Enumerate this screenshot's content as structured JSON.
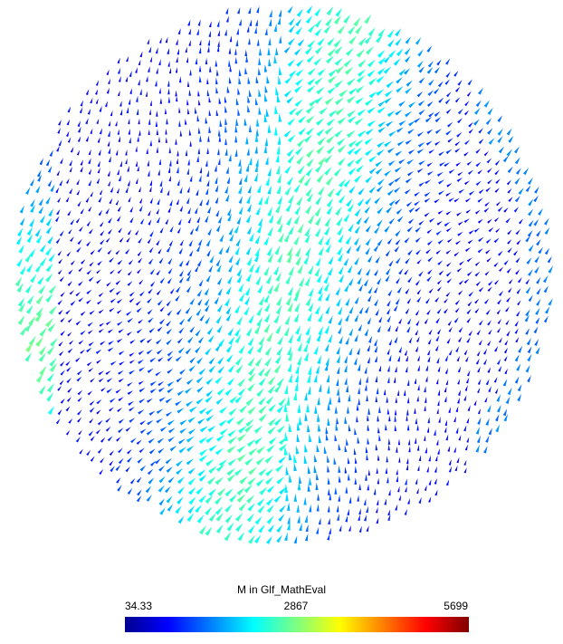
{
  "colorbar": {
    "title": "M in Glf_MathEval",
    "min_label": "34.33",
    "mid_label": "2867",
    "max_label": "5699"
  }
}
